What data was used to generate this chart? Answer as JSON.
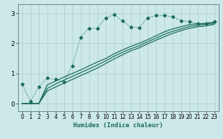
{
  "xlabel": "Humidex (Indice chaleur)",
  "bg_color": "#cce8e8",
  "line_color": "#1a6b5a",
  "grid_color": "#aacccc",
  "xlim": [
    -0.5,
    23.5
  ],
  "ylim": [
    -0.25,
    3.3
  ],
  "xticks": [
    0,
    1,
    2,
    3,
    4,
    5,
    6,
    7,
    8,
    9,
    10,
    11,
    12,
    13,
    14,
    15,
    16,
    17,
    18,
    19,
    20,
    21,
    22,
    23
  ],
  "yticks": [
    0,
    1,
    2,
    3
  ],
  "s1_x": [
    0,
    1,
    2,
    3,
    4,
    5,
    6,
    7,
    8,
    9,
    10,
    11,
    12,
    13,
    14,
    15,
    16,
    17,
    18,
    19,
    20,
    21,
    22,
    23
  ],
  "s1_y": [
    0.65,
    0.08,
    0.55,
    0.85,
    0.8,
    0.72,
    1.25,
    2.2,
    2.5,
    2.5,
    2.85,
    2.95,
    2.75,
    2.55,
    2.52,
    2.85,
    2.92,
    2.92,
    2.88,
    2.75,
    2.72,
    2.65,
    2.65,
    2.72
  ],
  "s2_x": [
    0,
    1,
    2,
    3,
    4,
    5,
    6,
    7,
    8,
    9,
    10,
    11,
    12,
    13,
    14,
    15,
    16,
    17,
    18,
    19,
    20,
    21,
    22,
    23
  ],
  "s2_y": [
    0.0,
    0.0,
    0.0,
    0.62,
    0.75,
    0.88,
    1.0,
    1.12,
    1.25,
    1.38,
    1.5,
    1.65,
    1.78,
    1.9,
    2.0,
    2.12,
    2.25,
    2.38,
    2.48,
    2.55,
    2.62,
    2.65,
    2.67,
    2.7
  ],
  "s3_x": [
    0,
    1,
    2,
    3,
    4,
    5,
    6,
    7,
    8,
    9,
    10,
    11,
    12,
    13,
    14,
    15,
    16,
    17,
    18,
    19,
    20,
    21,
    22,
    23
  ],
  "s3_y": [
    0.0,
    0.0,
    0.0,
    0.5,
    0.65,
    0.78,
    0.9,
    1.03,
    1.15,
    1.28,
    1.42,
    1.57,
    1.7,
    1.82,
    1.92,
    2.05,
    2.17,
    2.3,
    2.4,
    2.48,
    2.56,
    2.6,
    2.63,
    2.67
  ],
  "s4_x": [
    0,
    1,
    2,
    3,
    4,
    5,
    6,
    7,
    8,
    9,
    10,
    11,
    12,
    13,
    14,
    15,
    16,
    17,
    18,
    19,
    20,
    21,
    22,
    23
  ],
  "s4_y": [
    0.0,
    0.0,
    0.0,
    0.42,
    0.55,
    0.68,
    0.8,
    0.93,
    1.05,
    1.18,
    1.33,
    1.48,
    1.62,
    1.75,
    1.85,
    1.98,
    2.1,
    2.22,
    2.33,
    2.42,
    2.5,
    2.55,
    2.58,
    2.63
  ]
}
